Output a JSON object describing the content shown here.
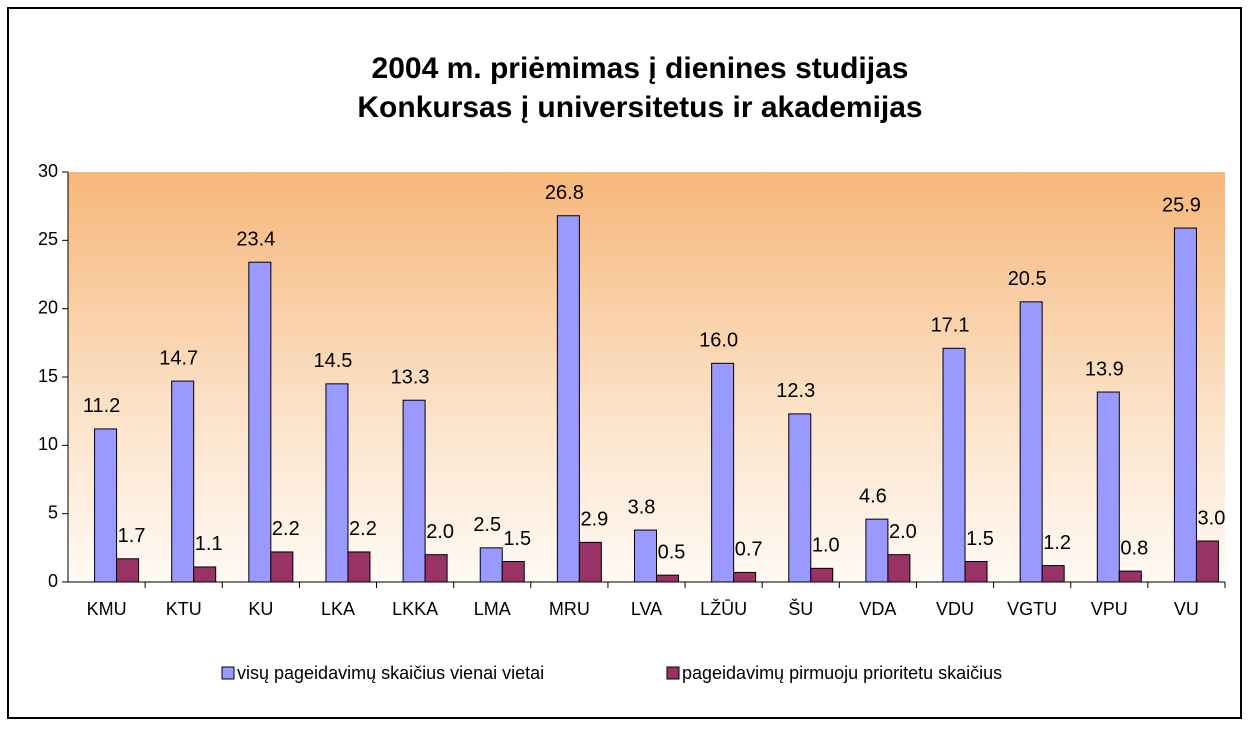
{
  "chart_data": {
    "type": "bar",
    "title": "2004 m. priėmimas į dienines studijas",
    "subtitle": "Konkursas į universitetus ir akademijas",
    "categories": [
      "KMU",
      "KTU",
      "KU",
      "LKA",
      "LKKA",
      "LMA",
      "MRU",
      "LVA",
      "LŽŪU",
      "ŠU",
      "VDA",
      "VDU",
      "VGTU",
      "VPU",
      "VU"
    ],
    "series": [
      {
        "name": "visų pageidavimų skaičius vienai vietai",
        "color": "#9999ff",
        "values": [
          11.2,
          14.7,
          23.4,
          14.5,
          13.3,
          2.5,
          26.8,
          3.8,
          16,
          12.3,
          4.6,
          17.1,
          20.5,
          13.9,
          25.9
        ],
        "value_labels": [
          "11.2",
          "14.7",
          "23.4",
          "14.5",
          "13.3",
          "2.5",
          "26.8",
          "3.8",
          "16.0",
          "12.3",
          "4.6",
          "17.1",
          "20.5",
          "13.9",
          "25.9"
        ]
      },
      {
        "name": "pageidavimų pirmuoju prioritetu skaičius",
        "color": "#993366",
        "values": [
          1.7,
          1.1,
          2.2,
          2.2,
          2,
          1.5,
          2.9,
          0.5,
          0.7,
          1,
          2,
          1.5,
          1.2,
          0.8,
          3
        ],
        "value_labels": [
          "1.7",
          "1.1",
          "2.2",
          "2.2",
          "2.0",
          "1.5",
          "2.9",
          "0.5",
          "0.7",
          "1.0",
          "2.0",
          "1.5",
          "1.2",
          "0.8",
          "3.0"
        ]
      }
    ],
    "ylim": [
      0,
      30
    ],
    "yticks": [
      0,
      5,
      10,
      15,
      20,
      25,
      30
    ],
    "grid": false,
    "legend": "bottom"
  }
}
